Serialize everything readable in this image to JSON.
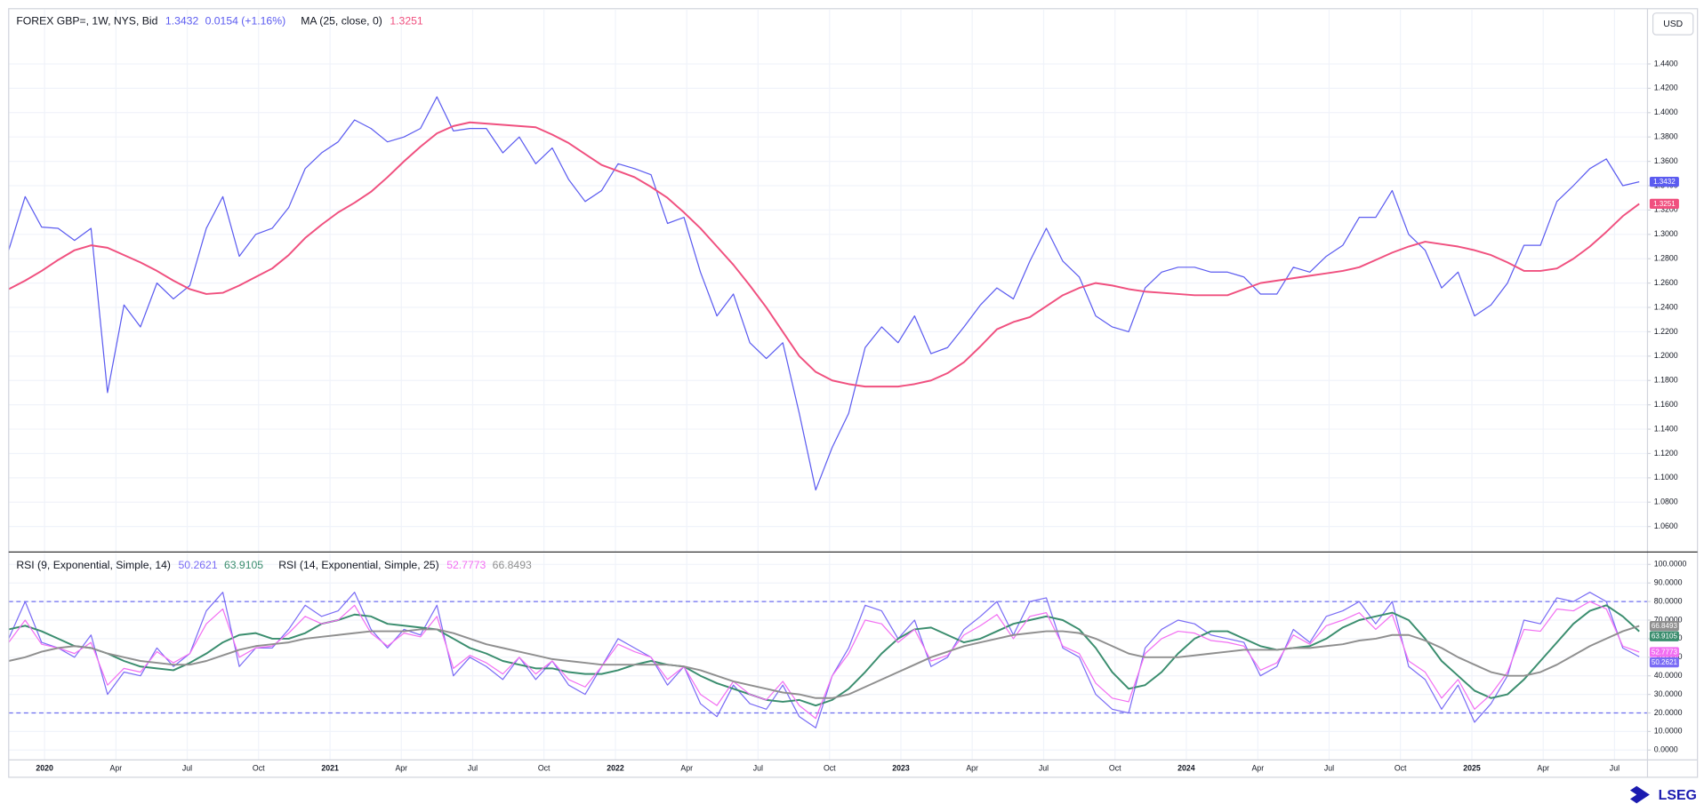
{
  "currency": "USD",
  "brand": "LSEG",
  "chart_data": [
    {
      "type": "line",
      "change": "0.0154 (+1.16%)",
      "ylim": [
        1.0395,
        1.4845
      ],
      "yticks": [
        {
          "value": 1.06,
          "label": "1.0600"
        },
        {
          "value": 1.08,
          "label": "1.0800"
        },
        {
          "value": 1.1,
          "label": "1.1000"
        },
        {
          "value": 1.12,
          "label": "1.1200"
        },
        {
          "value": 1.14,
          "label": "1.1400"
        },
        {
          "value": 1.16,
          "label": "1.1600"
        },
        {
          "value": 1.18,
          "label": "1.1800"
        },
        {
          "value": 1.2,
          "label": "1.2000"
        },
        {
          "value": 1.22,
          "label": "1.2200"
        },
        {
          "value": 1.24,
          "label": "1.2400"
        },
        {
          "value": 1.26,
          "label": "1.2600"
        },
        {
          "value": 1.28,
          "label": "1.2800"
        },
        {
          "value": 1.3,
          "label": "1.3000"
        },
        {
          "value": 1.32,
          "label": "1.3200"
        },
        {
          "value": 1.34,
          "label": "1.3400"
        },
        {
          "value": 1.36,
          "label": "1.3600"
        },
        {
          "value": 1.38,
          "label": "1.3800"
        },
        {
          "value": 1.4,
          "label": "1.4000"
        },
        {
          "value": 1.42,
          "label": "1.4200"
        },
        {
          "value": 1.44,
          "label": "1.4400"
        }
      ],
      "grid": true,
      "series": [
        {
          "name": "FOREX GBP=, 1W, NYS, Bid",
          "color": "#5b5bf0",
          "values": [
            1.287,
            1.331,
            1.306,
            1.305,
            1.295,
            1.305,
            1.17,
            1.242,
            1.224,
            1.26,
            1.247,
            1.258,
            1.305,
            1.331,
            1.282,
            1.3,
            1.305,
            1.322,
            1.354,
            1.367,
            1.376,
            1.394,
            1.387,
            1.376,
            1.38,
            1.387,
            1.413,
            1.385,
            1.387,
            1.387,
            1.367,
            1.38,
            1.358,
            1.371,
            1.345,
            1.327,
            1.336,
            1.358,
            1.354,
            1.349,
            1.309,
            1.314,
            1.269,
            1.233,
            1.251,
            1.211,
            1.198,
            1.211,
            1.153,
            1.09,
            1.125,
            1.153,
            1.207,
            1.224,
            1.211,
            1.233,
            1.202,
            1.207,
            1.224,
            1.242,
            1.256,
            1.247,
            1.278,
            1.305,
            1.278,
            1.265,
            1.233,
            1.224,
            1.22,
            1.256,
            1.269,
            1.273,
            1.273,
            1.269,
            1.269,
            1.265,
            1.251,
            1.251,
            1.273,
            1.269,
            1.282,
            1.291,
            1.314,
            1.314,
            1.336,
            1.3,
            1.287,
            1.256,
            1.269,
            1.233,
            1.242,
            1.26,
            1.291,
            1.291,
            1.327,
            1.34,
            1.354,
            1.362,
            1.34,
            1.3432
          ]
        },
        {
          "name": "MA (25, close, 0)",
          "color": "#f0507f",
          "values": [
            1.255,
            1.262,
            1.27,
            1.279,
            1.287,
            1.291,
            1.289,
            1.283,
            1.277,
            1.27,
            1.262,
            1.255,
            1.251,
            1.252,
            1.258,
            1.265,
            1.272,
            1.283,
            1.297,
            1.308,
            1.318,
            1.326,
            1.335,
            1.347,
            1.36,
            1.372,
            1.383,
            1.389,
            1.392,
            1.391,
            1.39,
            1.389,
            1.388,
            1.382,
            1.375,
            1.366,
            1.357,
            1.352,
            1.347,
            1.339,
            1.33,
            1.318,
            1.305,
            1.29,
            1.275,
            1.258,
            1.24,
            1.22,
            1.2,
            1.187,
            1.18,
            1.177,
            1.175,
            1.175,
            1.175,
            1.177,
            1.18,
            1.186,
            1.195,
            1.208,
            1.222,
            1.228,
            1.232,
            1.241,
            1.25,
            1.256,
            1.26,
            1.258,
            1.255,
            1.253,
            1.252,
            1.251,
            1.25,
            1.25,
            1.25,
            1.255,
            1.26,
            1.262,
            1.264,
            1.266,
            1.268,
            1.27,
            1.273,
            1.279,
            1.285,
            1.29,
            1.294,
            1.292,
            1.29,
            1.287,
            1.283,
            1.277,
            1.27,
            1.27,
            1.272,
            1.28,
            1.29,
            1.302,
            1.315,
            1.3251
          ]
        }
      ]
    },
    {
      "type": "line",
      "xlim": [
        0,
        99.5
      ],
      "xticks": [
        {
          "value": 2.18,
          "label": "2020"
        },
        {
          "value": 6.51,
          "label": "Apr"
        },
        {
          "value": 10.84,
          "label": "Jul"
        },
        {
          "value": 15.17,
          "label": "Oct"
        },
        {
          "value": 19.51,
          "label": "2021"
        },
        {
          "value": 23.84,
          "label": "Apr"
        },
        {
          "value": 28.17,
          "label": "Jul"
        },
        {
          "value": 32.5,
          "label": "Oct"
        },
        {
          "value": 36.84,
          "label": "2022"
        },
        {
          "value": 41.17,
          "label": "Apr"
        },
        {
          "value": 45.5,
          "label": "Jul"
        },
        {
          "value": 49.84,
          "label": "Oct"
        },
        {
          "value": 54.17,
          "label": "2023"
        },
        {
          "value": 58.5,
          "label": "Apr"
        },
        {
          "value": 62.84,
          "label": "Jul"
        },
        {
          "value": 67.17,
          "label": "Oct"
        },
        {
          "value": 71.5,
          "label": "2024"
        },
        {
          "value": 75.84,
          "label": "Apr"
        },
        {
          "value": 80.17,
          "label": "Jul"
        },
        {
          "value": 84.5,
          "label": "Oct"
        },
        {
          "value": 88.84,
          "label": "2025"
        },
        {
          "value": 93.17,
          "label": "Apr"
        },
        {
          "value": 97.5,
          "label": "Jul"
        }
      ],
      "ylim": [
        -5.3,
        105.8
      ],
      "yticks": [
        {
          "value": 0,
          "label": "0.0000"
        },
        {
          "value": 10,
          "label": "10.0000"
        },
        {
          "value": 20,
          "label": "20.0000"
        },
        {
          "value": 30,
          "label": "30.0000"
        },
        {
          "value": 40,
          "label": "40.0000"
        },
        {
          "value": 50,
          "label": "50.0000"
        },
        {
          "value": 60,
          "label": "60.0000"
        },
        {
          "value": 70,
          "label": "70.0000"
        },
        {
          "value": 80,
          "label": "80.0000"
        },
        {
          "value": 90,
          "label": "90.0000"
        },
        {
          "value": 100,
          "label": "100.0000"
        }
      ],
      "levels": [
        20,
        80
      ],
      "grid": true,
      "series": [
        {
          "name": "RSI (9, Exponential, Simple, 14)",
          "color": "#7a6cf5",
          "values": [
            60,
            80,
            58,
            55,
            50,
            62,
            30,
            42,
            40,
            55,
            45,
            52,
            75,
            85,
            45,
            55,
            55,
            65,
            78,
            72,
            75,
            85,
            65,
            55,
            65,
            62,
            78,
            40,
            50,
            45,
            38,
            50,
            38,
            48,
            35,
            30,
            45,
            60,
            55,
            50,
            35,
            45,
            25,
            18,
            35,
            25,
            22,
            35,
            18,
            12,
            40,
            55,
            78,
            75,
            60,
            70,
            45,
            50,
            65,
            72,
            80,
            62,
            80,
            82,
            55,
            50,
            30,
            22,
            20,
            55,
            65,
            70,
            68,
            62,
            60,
            58,
            40,
            45,
            65,
            58,
            72,
            75,
            80,
            68,
            80,
            45,
            38,
            22,
            35,
            15,
            25,
            40,
            70,
            68,
            82,
            80,
            85,
            80,
            55,
            50.2621
          ]
        },
        {
          "color": "#3a8d6e",
          "values": [
            65,
            67,
            64,
            60,
            56,
            55,
            52,
            48,
            45,
            44,
            43,
            47,
            52,
            58,
            62,
            63,
            60,
            60,
            63,
            68,
            70,
            73,
            72,
            68,
            67,
            66,
            65,
            60,
            55,
            52,
            48,
            46,
            44,
            44,
            42,
            41,
            41,
            43,
            46,
            48,
            46,
            45,
            40,
            36,
            33,
            30,
            27,
            26,
            27,
            24,
            27,
            33,
            42,
            52,
            60,
            65,
            66,
            62,
            58,
            60,
            64,
            68,
            70,
            72,
            70,
            65,
            55,
            42,
            33,
            35,
            42,
            52,
            60,
            64,
            64,
            60,
            56,
            54,
            55,
            56,
            60,
            66,
            70,
            72,
            74,
            70,
            60,
            48,
            40,
            32,
            28,
            30,
            38,
            48,
            58,
            68,
            75,
            78,
            72,
            63.9105
          ]
        },
        {
          "name": "RSI (14, Exponential, Simple, 25)",
          "color": "#f26ff2",
          "values": [
            58,
            70,
            57,
            55,
            52,
            58,
            35,
            44,
            42,
            53,
            47,
            52,
            68,
            76,
            50,
            55,
            56,
            63,
            72,
            68,
            70,
            78,
            63,
            56,
            63,
            61,
            72,
            44,
            51,
            47,
            41,
            50,
            41,
            48,
            38,
            34,
            45,
            57,
            53,
            50,
            38,
            45,
            30,
            24,
            37,
            30,
            27,
            37,
            24,
            17,
            40,
            52,
            70,
            68,
            58,
            65,
            48,
            51,
            62,
            67,
            73,
            60,
            72,
            74,
            56,
            52,
            36,
            28,
            26,
            52,
            60,
            64,
            63,
            59,
            58,
            56,
            43,
            47,
            62,
            57,
            67,
            70,
            74,
            65,
            73,
            48,
            42,
            28,
            38,
            22,
            30,
            42,
            65,
            64,
            76,
            75,
            80,
            76,
            56,
            52.7773
          ]
        },
        {
          "color": "#8f8f8f",
          "values": [
            48,
            50,
            53,
            55,
            56,
            55,
            52,
            50,
            48,
            47,
            46,
            46,
            48,
            51,
            54,
            56,
            57,
            58,
            60,
            61,
            62,
            63,
            64,
            64,
            64,
            65,
            65,
            63,
            60,
            57,
            55,
            53,
            51,
            49,
            48,
            47,
            46,
            46,
            46,
            46,
            46,
            45,
            43,
            40,
            37,
            35,
            33,
            31,
            30,
            28,
            28,
            30,
            34,
            38,
            42,
            46,
            50,
            53,
            56,
            58,
            60,
            62,
            63,
            64,
            64,
            63,
            60,
            56,
            52,
            50,
            50,
            50,
            51,
            52,
            53,
            54,
            54,
            54,
            55,
            55,
            56,
            57,
            59,
            60,
            62,
            62,
            59,
            55,
            50,
            46,
            42,
            40,
            40,
            42,
            46,
            51,
            56,
            60,
            64,
            66.8493
          ]
        }
      ]
    }
  ]
}
